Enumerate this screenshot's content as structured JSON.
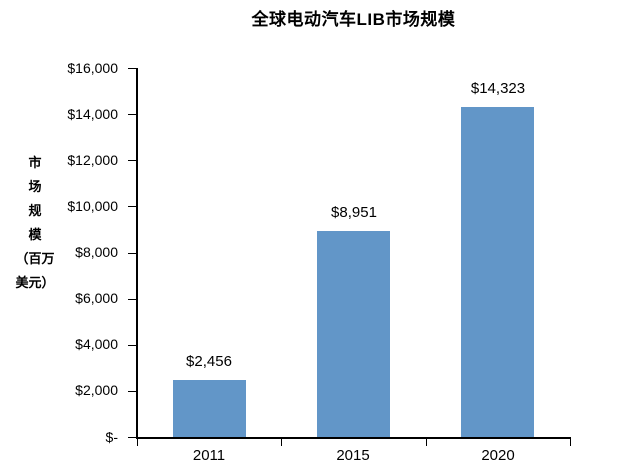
{
  "chart_data": {
    "type": "bar",
    "title": "全球电动汽车LIB市场规模",
    "categories": [
      "2011",
      "2015",
      "2020"
    ],
    "values": [
      2456,
      8951,
      14323
    ],
    "value_labels": [
      "$2,456",
      "$8,951",
      "$14,323"
    ],
    "xlabel": "",
    "ylabel": "市场规模（百万美元）",
    "ylabel_lines": [
      "市",
      "场",
      "规",
      "模",
      "（百万",
      "美元）"
    ],
    "ylim": [
      0,
      16000
    ],
    "ytick_interval": 2000,
    "yticks": [
      {
        "value": 16000,
        "label": "$16,000"
      },
      {
        "value": 14000,
        "label": "$14,000"
      },
      {
        "value": 12000,
        "label": "$12,000"
      },
      {
        "value": 10000,
        "label": "$10,000"
      },
      {
        "value": 8000,
        "label": "$8,000"
      },
      {
        "value": 6000,
        "label": "$6,000"
      },
      {
        "value": 4000,
        "label": "$4,000"
      },
      {
        "value": 2000,
        "label": "$2,000"
      },
      {
        "value": 0,
        "label": "$-"
      }
    ],
    "grid": false,
    "legend": false,
    "colors": {
      "bar": "#6296C8",
      "axis": "#000000",
      "text": "#000000",
      "background": "#FFFFFF"
    }
  }
}
